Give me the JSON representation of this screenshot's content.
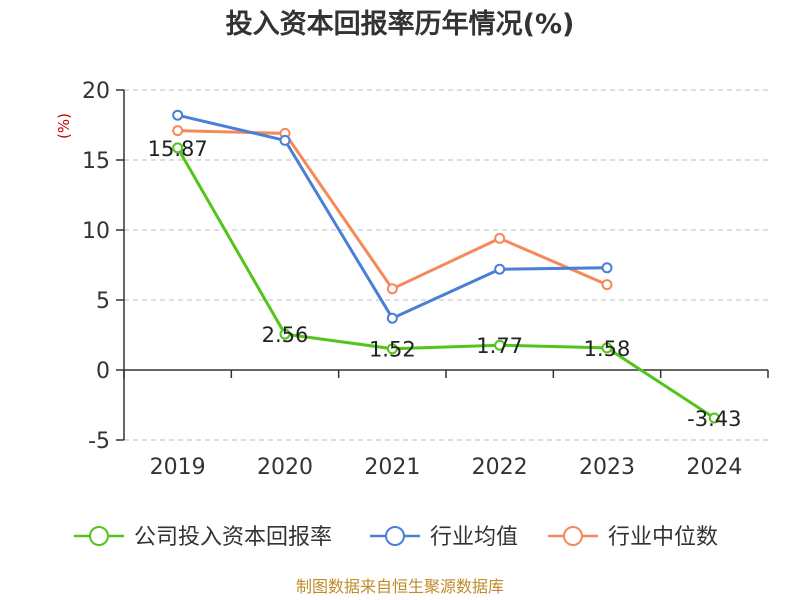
{
  "chart_data": {
    "type": "line",
    "title": "投入资本回报率历年情况(%)",
    "ylabel": "(%)",
    "xlabel": "",
    "categories": [
      "2019",
      "2020",
      "2021",
      "2022",
      "2023",
      "2024"
    ],
    "ylim": [
      -5,
      20
    ],
    "yticks": [
      20,
      15,
      10,
      5,
      0,
      -5
    ],
    "grid": true,
    "legend_position": "bottom",
    "series": [
      {
        "name": "公司投入资本回报率",
        "color": "#52c41a",
        "values": [
          15.87,
          2.56,
          1.52,
          1.77,
          1.58,
          -3.43
        ],
        "labels": [
          "15.87",
          "2.56",
          "1.52",
          "1.77",
          "1.58",
          "-3.43"
        ]
      },
      {
        "name": "行业均值",
        "color": "#4a7fd6",
        "values": [
          18.2,
          16.4,
          3.7,
          7.2,
          7.3,
          null
        ]
      },
      {
        "name": "行业中位数",
        "color": "#f5895a",
        "values": [
          17.1,
          16.9,
          5.8,
          9.4,
          6.1,
          null
        ]
      }
    ]
  },
  "source": "制图数据来自恒生聚源数据库"
}
